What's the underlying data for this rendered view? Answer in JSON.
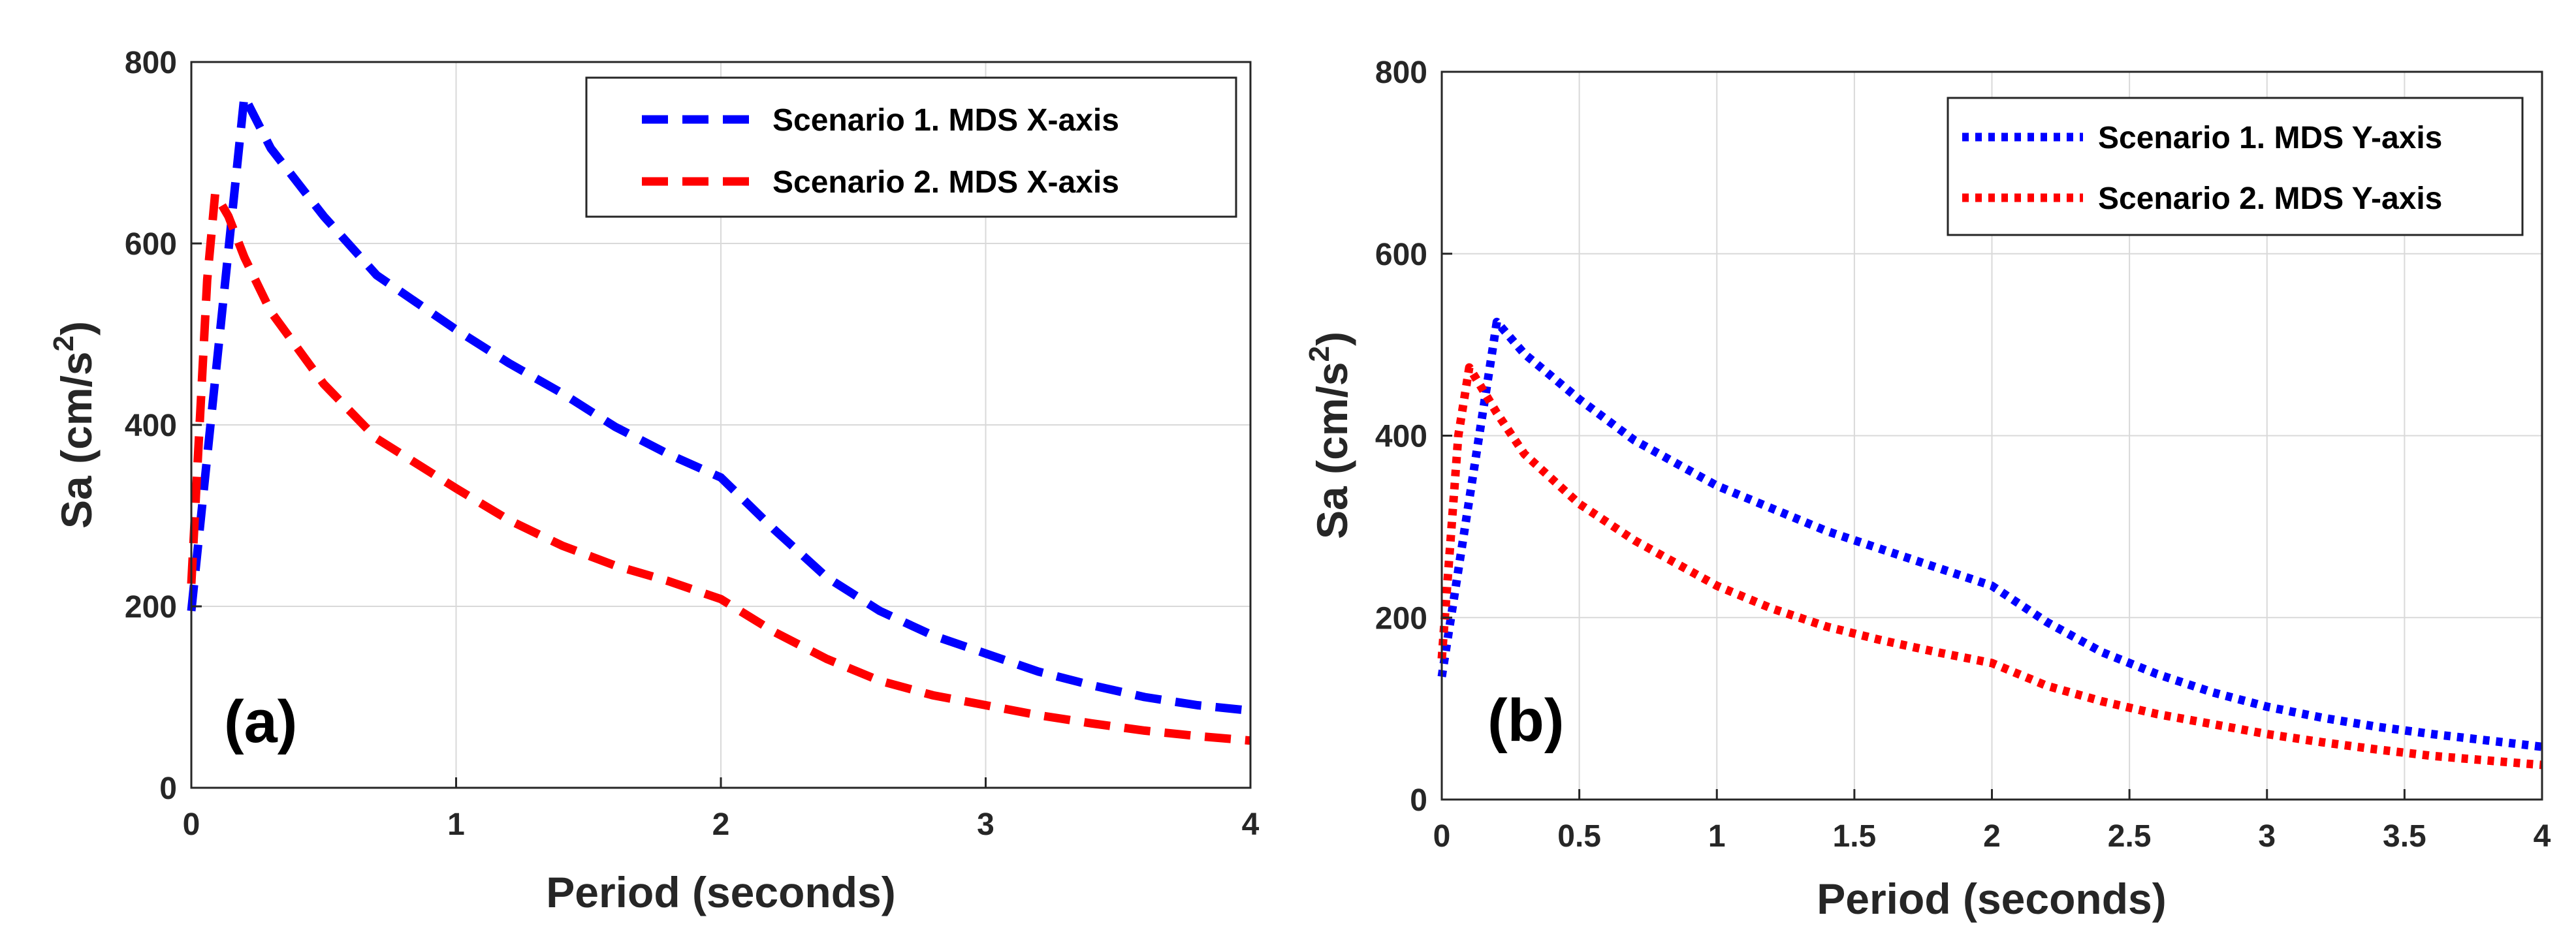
{
  "chart_data": [
    {
      "type": "line",
      "panel_label": "(a)",
      "xlabel": "Period (seconds)",
      "ylabel": "Sa (cm/s",
      "ylabel_sup": "2",
      "ylabel_close": ")",
      "xlim": [
        0,
        4
      ],
      "ylim": [
        0,
        800
      ],
      "xticks": [
        0,
        1,
        2,
        3,
        4
      ],
      "xtick_labels": [
        "0",
        "1",
        "2",
        "3",
        "4"
      ],
      "yticks": [
        0,
        200,
        400,
        600,
        800
      ],
      "ytick_labels": [
        "0",
        "200",
        "400",
        "600",
        "800"
      ],
      "grid": true,
      "legend_position": "top-right",
      "series": [
        {
          "name": "Scenario 1. MDS X-axis",
          "color": "#0000ff",
          "style": "dashed",
          "x": [
            0,
            0.2,
            0.3,
            0.5,
            0.7,
            1.0,
            1.2,
            1.4,
            1.6,
            1.8,
            2.0,
            2.2,
            2.4,
            2.6,
            2.8,
            3.0,
            3.2,
            3.4,
            3.6,
            3.8,
            4.0
          ],
          "y": [
            195,
            762,
            705,
            630,
            565,
            505,
            468,
            435,
            398,
            368,
            342,
            285,
            232,
            195,
            168,
            148,
            128,
            113,
            100,
            91,
            85
          ]
        },
        {
          "name": "Scenario 2. MDS X-axis",
          "color": "#ff0000",
          "style": "dashed",
          "x": [
            0,
            0.06,
            0.09,
            0.14,
            0.2,
            0.3,
            0.5,
            0.7,
            1.0,
            1.2,
            1.4,
            1.6,
            1.8,
            2.0,
            2.2,
            2.4,
            2.6,
            2.8,
            3.0,
            3.2,
            3.4,
            3.6,
            3.8,
            4.0
          ],
          "y": [
            225,
            560,
            655,
            630,
            585,
            525,
            445,
            385,
            330,
            295,
            267,
            245,
            228,
            208,
            172,
            142,
            118,
            102,
            91,
            80,
            71,
            63,
            57,
            52
          ]
        }
      ]
    },
    {
      "type": "line",
      "panel_label": "(b)",
      "xlabel": "Period (seconds)",
      "ylabel": "Sa (cm/s",
      "ylabel_sup": "2",
      "ylabel_close": ")",
      "xlim": [
        0,
        4
      ],
      "ylim": [
        0,
        800
      ],
      "xticks": [
        0,
        0.5,
        1,
        1.5,
        2,
        2.5,
        3,
        3.5,
        4
      ],
      "xtick_labels": [
        "0",
        "0.5",
        "1",
        "1.5",
        "2",
        "2.5",
        "3",
        "3.5",
        "4"
      ],
      "yticks": [
        0,
        200,
        400,
        600,
        800
      ],
      "ytick_labels": [
        "0",
        "200",
        "400",
        "600",
        "800"
      ],
      "grid": true,
      "legend_position": "top-right",
      "series": [
        {
          "name": "Scenario 1. MDS Y-axis",
          "color": "#0000ff",
          "style": "dotted",
          "x": [
            0,
            0.2,
            0.3,
            0.5,
            0.7,
            1.0,
            1.2,
            1.4,
            1.6,
            1.8,
            2.0,
            2.2,
            2.4,
            2.6,
            2.8,
            3.0,
            3.2,
            3.4,
            3.6,
            3.8,
            4.0
          ],
          "y": [
            135,
            525,
            490,
            440,
            395,
            345,
            320,
            295,
            275,
            255,
            235,
            195,
            162,
            138,
            118,
            102,
            90,
            80,
            72,
            65,
            58
          ]
        },
        {
          "name": "Scenario 2. MDS Y-axis",
          "color": "#ff0000",
          "style": "dotted",
          "x": [
            0,
            0.06,
            0.1,
            0.14,
            0.2,
            0.3,
            0.5,
            0.7,
            1.0,
            1.2,
            1.4,
            1.6,
            1.8,
            2.0,
            2.2,
            2.4,
            2.6,
            2.8,
            3.0,
            3.2,
            3.4,
            3.6,
            3.8,
            4.0
          ],
          "y": [
            155,
            400,
            475,
            455,
            425,
            380,
            325,
            285,
            235,
            210,
            190,
            175,
            162,
            150,
            125,
            108,
            94,
            83,
            72,
            63,
            55,
            48,
            43,
            38
          ]
        }
      ]
    }
  ]
}
